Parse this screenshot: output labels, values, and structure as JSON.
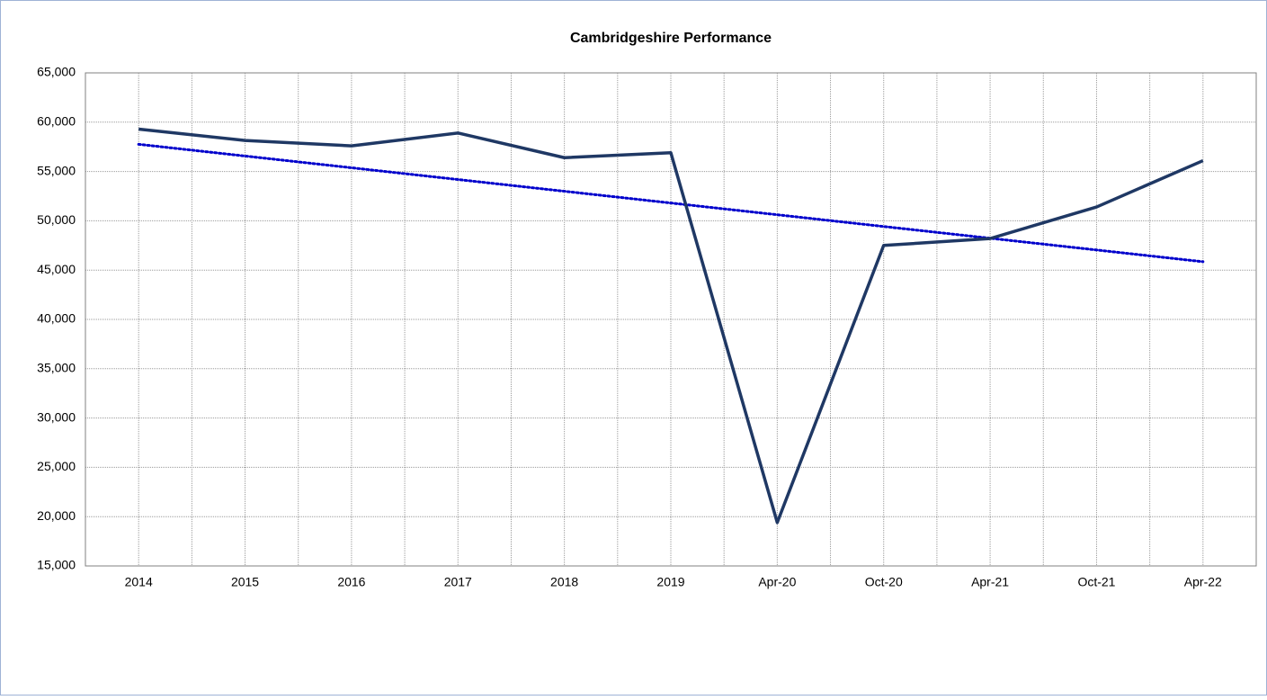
{
  "chart_data": {
    "type": "line",
    "title": "Cambridgeshire Performance",
    "categories": [
      "2014",
      "2015",
      "2016",
      "2017",
      "2018",
      "2019",
      "Apr-20",
      "Oct-20",
      "Apr-21",
      "Oct-21",
      "Apr-22"
    ],
    "values": [
      59300,
      58150,
      57600,
      58900,
      56400,
      56900,
      19400,
      47500,
      48200,
      51400,
      56100
    ],
    "color": "#1f3864",
    "trendline": "linear",
    "trendline_color": "#0000cc",
    "ylim": [
      15000,
      65000
    ],
    "yticks": [
      {
        "value": 15000,
        "label": "15,000"
      },
      {
        "value": 20000,
        "label": "20,000"
      },
      {
        "value": 25000,
        "label": "25,000"
      },
      {
        "value": 30000,
        "label": "30,000"
      },
      {
        "value": 35000,
        "label": "35,000"
      },
      {
        "value": 40000,
        "label": "40,000"
      },
      {
        "value": 45000,
        "label": "45,000"
      },
      {
        "value": 50000,
        "label": "50,000"
      },
      {
        "value": 55000,
        "label": "55,000"
      },
      {
        "value": 60000,
        "label": "60,000"
      },
      {
        "value": 65000,
        "label": "65,000"
      }
    ],
    "grid": true
  }
}
